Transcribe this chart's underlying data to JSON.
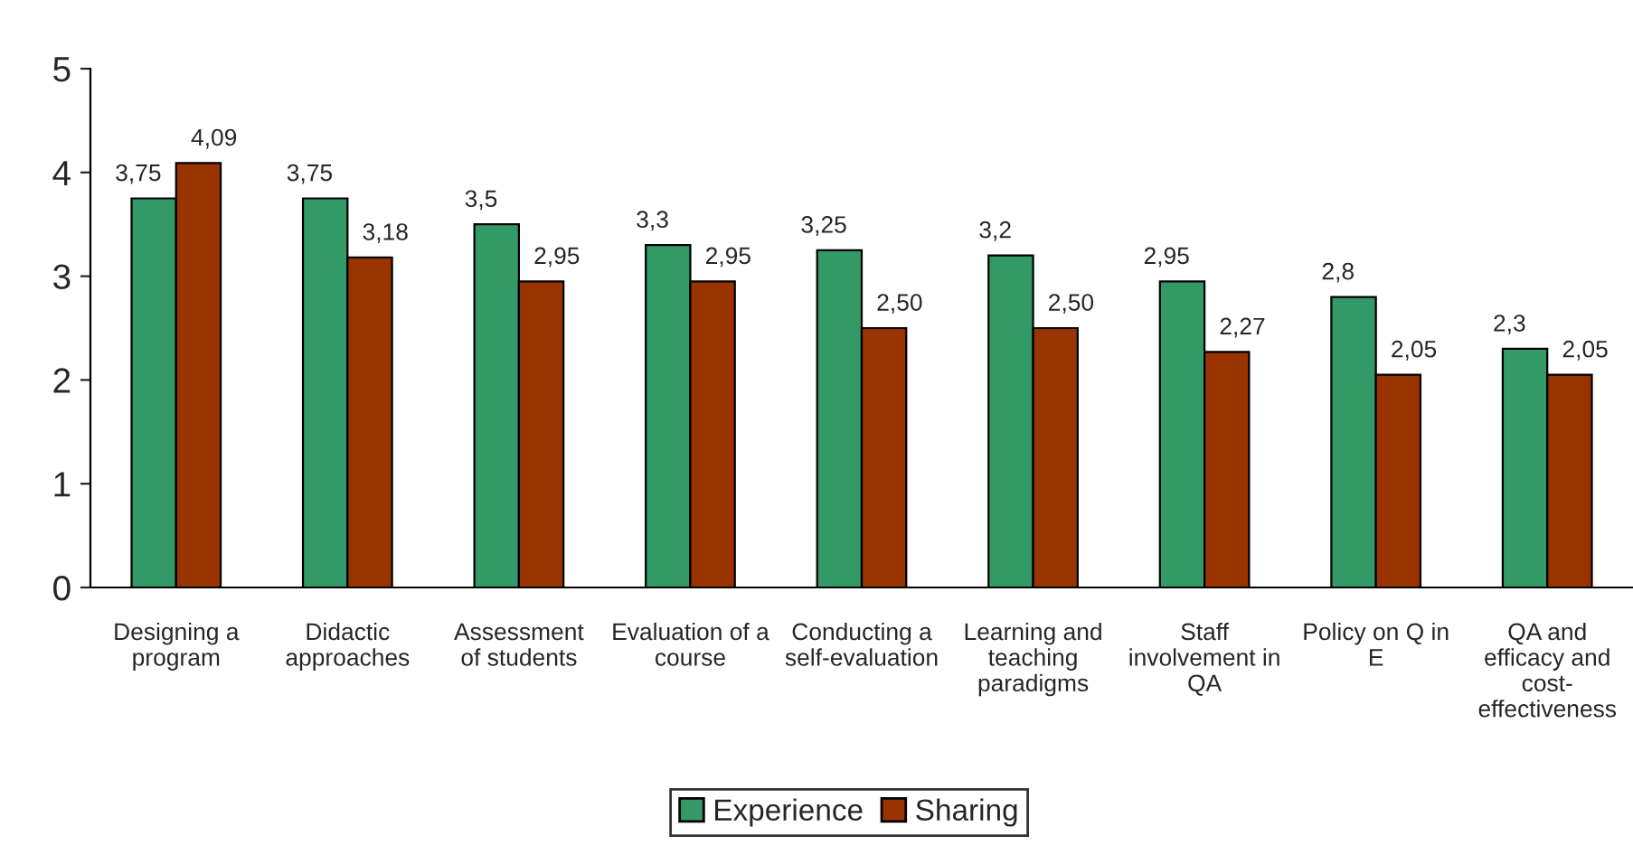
{
  "chart_data": {
    "type": "bar",
    "categories": [
      "Designing a\nprogram",
      "Didactic\napproaches",
      "Assessment\nof students",
      "Evaluation of a\ncourse",
      "Conducting a\nself-evaluation",
      "Learning and\nteaching\nparadigms",
      "Staff\ninvolvement in\nQA",
      "Policy on Q in\nE",
      "QA and\nefficacy and\ncost-\neffectiveness"
    ],
    "series": [
      {
        "name": "Experience",
        "color": "#339966",
        "values": [
          3.75,
          3.75,
          3.5,
          3.3,
          3.25,
          3.2,
          2.95,
          2.8,
          2.3
        ],
        "value_labels": [
          "3,75",
          "3,75",
          "3,5",
          "3,3",
          "3,25",
          "3,2",
          "2,95",
          "2,8",
          "2,3"
        ]
      },
      {
        "name": "Sharing",
        "color": "#993300",
        "values": [
          4.09,
          3.18,
          2.95,
          2.95,
          2.5,
          2.5,
          2.27,
          2.05,
          2.05
        ],
        "value_labels": [
          "4,09",
          "3,18",
          "2,95",
          "2,95",
          "2,50",
          "2,50",
          "2,27",
          "2,05",
          "2,05"
        ]
      }
    ],
    "ylim": [
      0,
      5
    ],
    "yticks": [
      0,
      1,
      2,
      3,
      4,
      5
    ],
    "grid": false,
    "legend": "bottom"
  }
}
